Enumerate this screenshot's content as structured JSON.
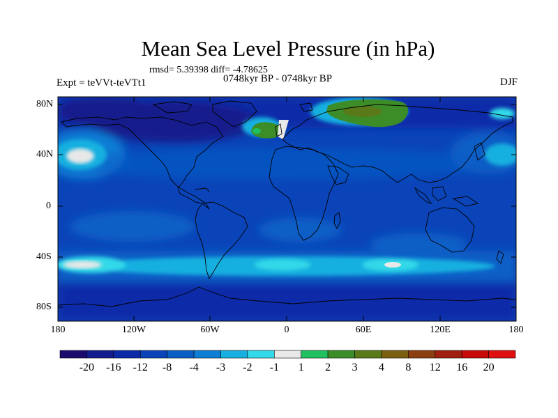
{
  "title": "Mean Sea Level Pressure (in hPa)",
  "stats": "rmsd= 5.39398 diff= -4.78625",
  "experiment": "Expt = teVVt-teVTt1",
  "period": "0748kyr BP - 0748kyr BP",
  "season": "DJF",
  "lat_labels": [
    "80N",
    "40N",
    "0",
    "40S",
    "80S"
  ],
  "lon_labels": [
    "180",
    "120W",
    "60W",
    "0",
    "60E",
    "120E",
    "180"
  ],
  "colorbar": {
    "labels": [
      "-20",
      "-16",
      "-12",
      "-8",
      "-4",
      "-3",
      "-2",
      "-1",
      "1",
      "2",
      "3",
      "4",
      "8",
      "12",
      "16",
      "20"
    ],
    "colors": [
      "#1a0a6e",
      "#121c8c",
      "#0a2aa8",
      "#0a44b8",
      "#0a5ec6",
      "#0d7ed4",
      "#18b0e0",
      "#33d9e8",
      "#e8e8e8",
      "#20c060",
      "#3c8c28",
      "#5a7a1a",
      "#7a6010",
      "#8c4010",
      "#a02010",
      "#c80a0a",
      "#e01010"
    ]
  },
  "colors": {
    "ocean_base": "#0a44b8",
    "deep_low": "#121c8c",
    "mid": "#0a5ec6",
    "light": "#18b0e0",
    "cyan": "#33d9e8",
    "near_zero": "#e8e8e8",
    "green": "#3c8c28",
    "olive": "#5a7a1a",
    "bright_green": "#20c060"
  }
}
